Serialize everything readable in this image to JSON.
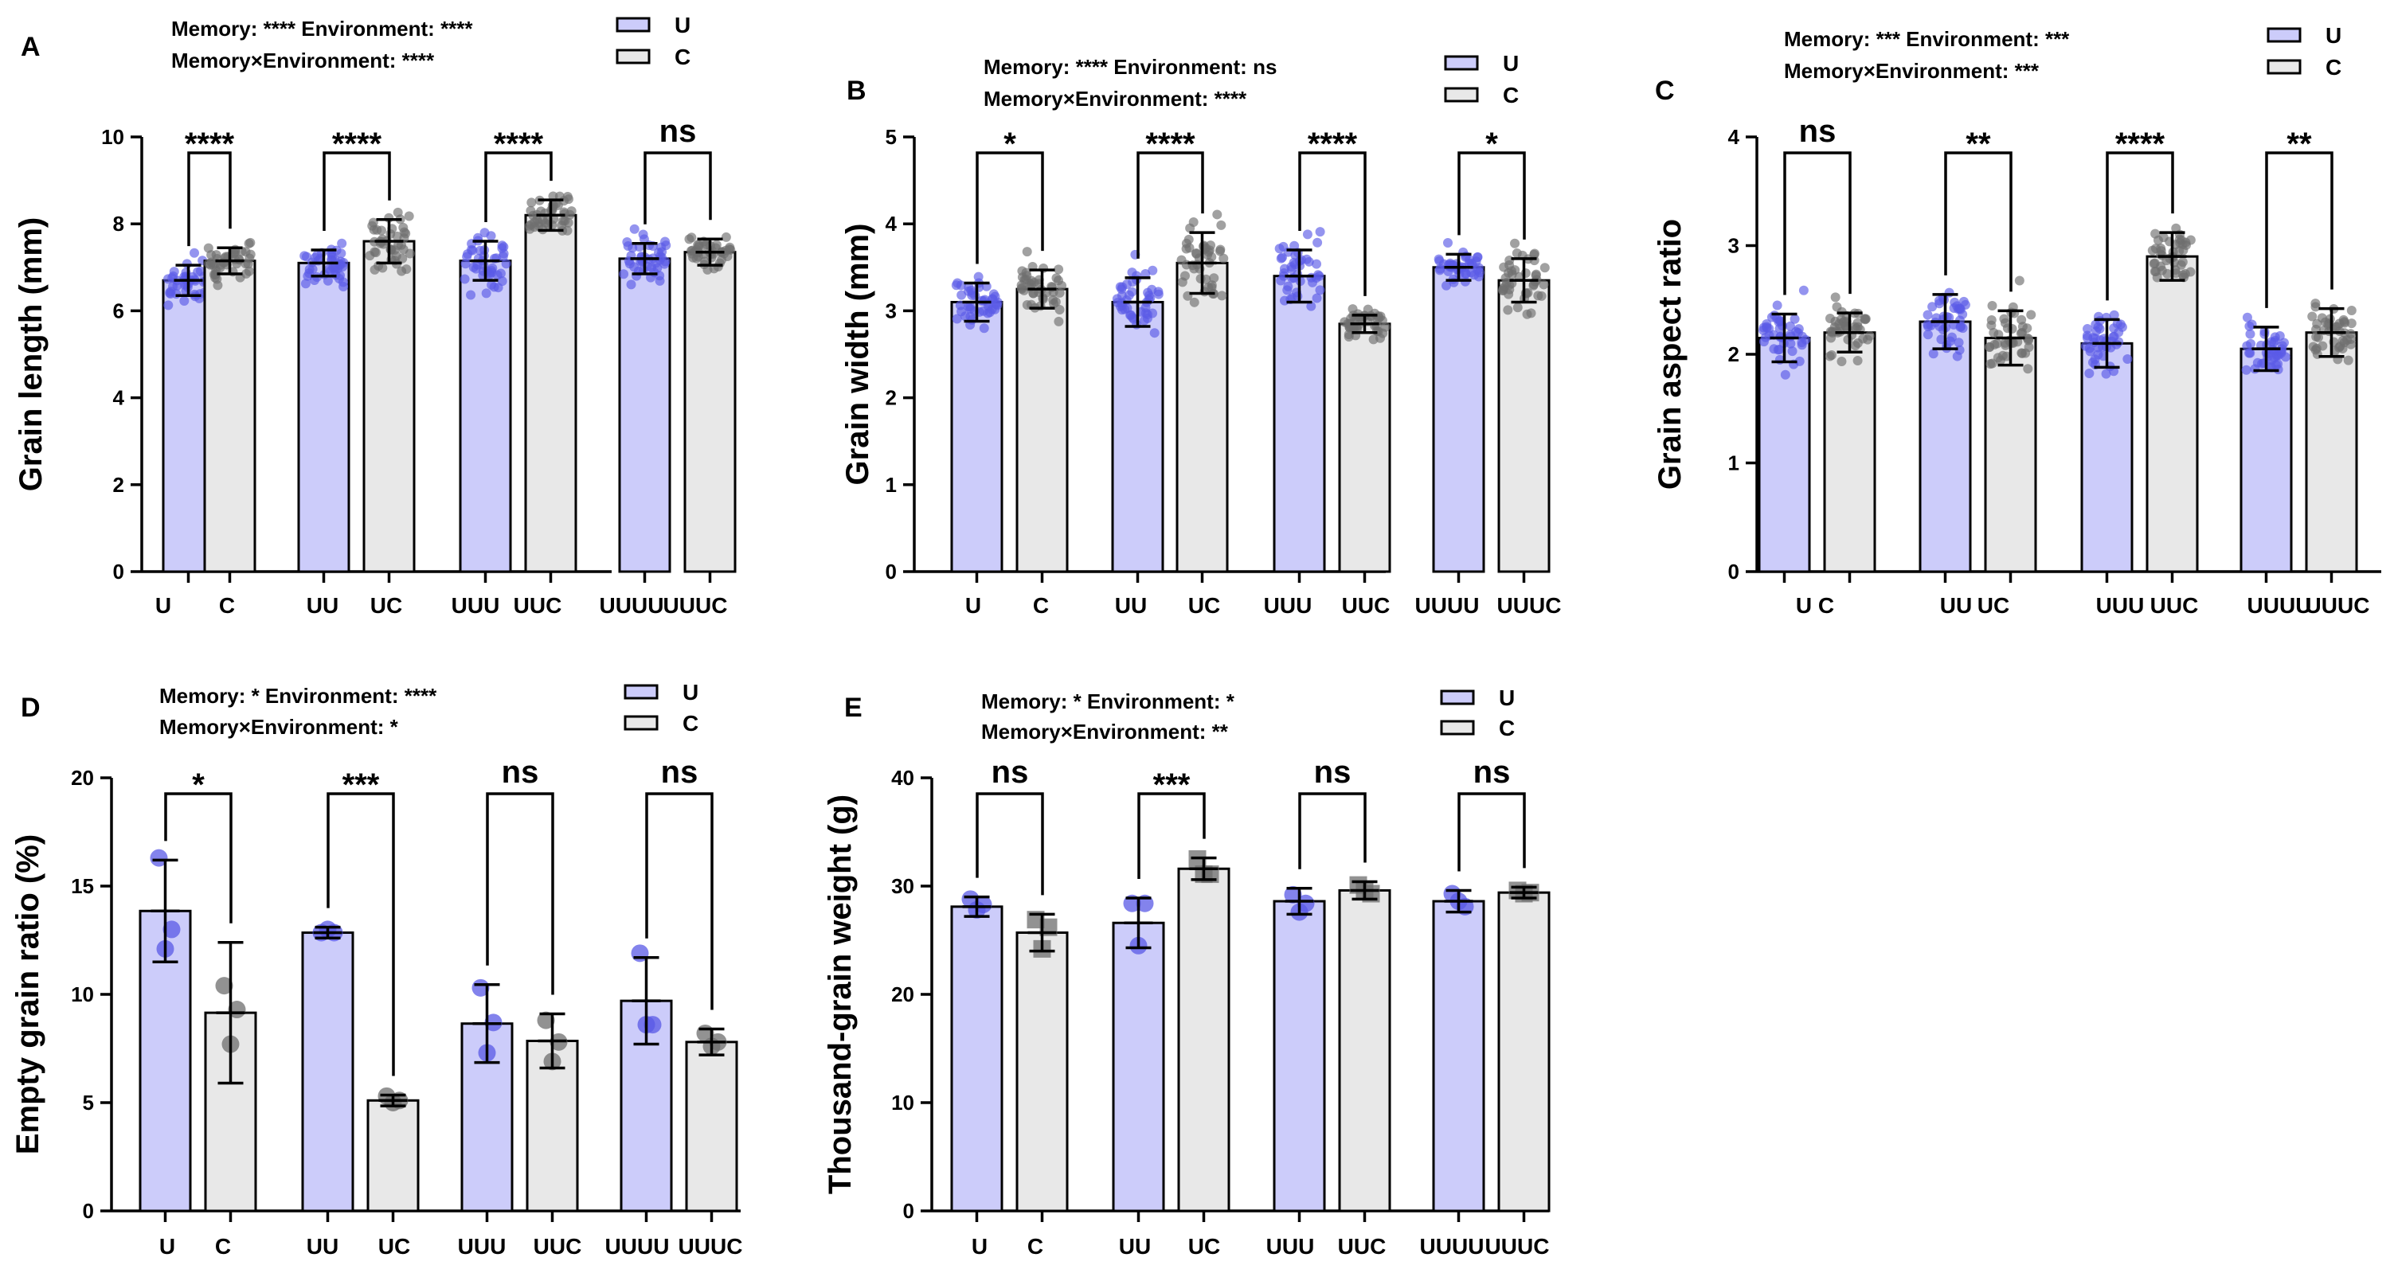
{
  "colors": {
    "U_bar": "#ccccfa",
    "C_bar": "#e8e8e8",
    "U_dot": "#5a5ae6",
    "C_dot": "#6e6e6e"
  },
  "chart_data": [
    {
      "panel": "A",
      "type": "bar",
      "stats": [
        "Memory: **** Environment: ****",
        "Memory×Environment: ****"
      ],
      "legend": [
        "U",
        "C"
      ],
      "ylabel": "Grain length (mm)",
      "ylim": [
        0,
        10
      ],
      "yticks": [
        "0",
        "2",
        "4",
        "6",
        "8",
        "10"
      ],
      "marker": "dots",
      "bars": [
        {
          "label": "U",
          "series": "U",
          "value": 6.7,
          "sd": 0.35
        },
        {
          "label": "C",
          "series": "C",
          "value": 7.15,
          "sd": 0.3
        },
        {
          "label": "UU",
          "series": "U",
          "value": 7.1,
          "sd": 0.3
        },
        {
          "label": "UC",
          "series": "C",
          "value": 7.6,
          "sd": 0.5
        },
        {
          "label": "UUU",
          "series": "U",
          "value": 7.15,
          "sd": 0.45
        },
        {
          "label": "UUC",
          "series": "C",
          "value": 8.2,
          "sd": 0.35
        },
        {
          "label": "UUUU",
          "series": "U",
          "value": 7.2,
          "sd": 0.35
        },
        {
          "label": "UUUC",
          "series": "C",
          "value": 7.35,
          "sd": 0.3
        }
      ],
      "significance": [
        "****",
        "****",
        "****",
        "ns"
      ]
    },
    {
      "panel": "B",
      "type": "bar",
      "stats": [
        "Memory: **** Environment: ns",
        "Memory×Environment: ****"
      ],
      "legend": [
        "U",
        "C"
      ],
      "ylabel": "Grain width (mm)",
      "ylim": [
        0,
        5
      ],
      "yticks": [
        "0",
        "1",
        "2",
        "3",
        "4",
        "5"
      ],
      "marker": "dots",
      "bars": [
        {
          "label": "U",
          "series": "U",
          "value": 3.1,
          "sd": 0.22
        },
        {
          "label": "C",
          "series": "C",
          "value": 3.25,
          "sd": 0.22
        },
        {
          "label": "UU",
          "series": "U",
          "value": 3.1,
          "sd": 0.28
        },
        {
          "label": "UC",
          "series": "C",
          "value": 3.55,
          "sd": 0.35
        },
        {
          "label": "UUU",
          "series": "U",
          "value": 3.4,
          "sd": 0.3
        },
        {
          "label": "UUC",
          "series": "C",
          "value": 2.85,
          "sd": 0.1
        },
        {
          "label": "UUUU",
          "series": "U",
          "value": 3.5,
          "sd": 0.15
        },
        {
          "label": "UUUC",
          "series": "C",
          "value": 3.35,
          "sd": 0.25
        }
      ],
      "significance": [
        "*",
        "****",
        "****",
        "*"
      ]
    },
    {
      "panel": "C",
      "type": "bar",
      "stats": [
        "Memory: *** Environment: ***",
        "Memory×Environment: ***"
      ],
      "legend": [
        "U",
        "C"
      ],
      "ylabel": "Grain aspect ratio",
      "ylim": [
        0,
        4
      ],
      "yticks": [
        "0",
        "1",
        "2",
        "3",
        "4"
      ],
      "marker": "dots",
      "bars": [
        {
          "label": "U",
          "series": "U",
          "value": 2.15,
          "sd": 0.22
        },
        {
          "label": "C",
          "series": "C",
          "value": 2.2,
          "sd": 0.18
        },
        {
          "label": "UU",
          "series": "U",
          "value": 2.3,
          "sd": 0.25
        },
        {
          "label": "UC",
          "series": "C",
          "value": 2.15,
          "sd": 0.25
        },
        {
          "label": "UUU",
          "series": "U",
          "value": 2.1,
          "sd": 0.22
        },
        {
          "label": "UUC",
          "series": "C",
          "value": 2.9,
          "sd": 0.22
        },
        {
          "label": "UUUU",
          "series": "U",
          "value": 2.05,
          "sd": 0.2
        },
        {
          "label": "UUUC",
          "series": "C",
          "value": 2.2,
          "sd": 0.22
        }
      ],
      "significance": [
        "ns",
        "**",
        "****",
        "**"
      ]
    },
    {
      "panel": "D",
      "type": "bar",
      "stats": [
        "Memory: * Environment: ****",
        "Memory×Environment: *"
      ],
      "legend": [
        "U",
        "C"
      ],
      "ylabel": "Empty grain ratio (%)",
      "ylim": [
        0,
        20
      ],
      "yticks": [
        "0",
        "5",
        "10",
        "15",
        "20"
      ],
      "marker": "replicates-circle",
      "bars": [
        {
          "label": "U",
          "series": "U",
          "value": 13.85,
          "sd": 2.35,
          "points": [
            16.3,
            13.0,
            12.1
          ]
        },
        {
          "label": "C",
          "series": "C",
          "value": 9.15,
          "sd": 3.25,
          "points": [
            10.4,
            9.3,
            7.7
          ]
        },
        {
          "label": "UU",
          "series": "U",
          "value": 12.85,
          "sd": 0.25,
          "points": [
            12.85,
            12.85,
            13.0
          ]
        },
        {
          "label": "UC",
          "series": "C",
          "value": 5.1,
          "sd": 0.25,
          "points": [
            5.3,
            5.1,
            5.0
          ]
        },
        {
          "label": "UUU",
          "series": "U",
          "value": 8.65,
          "sd": 1.8,
          "points": [
            10.3,
            8.7,
            7.3
          ]
        },
        {
          "label": "UUC",
          "series": "C",
          "value": 7.85,
          "sd": 1.25,
          "points": [
            8.8,
            7.8,
            6.9
          ]
        },
        {
          "label": "UUUU",
          "series": "U",
          "value": 9.7,
          "sd": 2.0,
          "points": [
            11.9,
            8.6,
            8.6
          ]
        },
        {
          "label": "UUUC",
          "series": "C",
          "value": 7.8,
          "sd": 0.6,
          "points": [
            8.2,
            7.8,
            7.6
          ]
        }
      ],
      "significance": [
        "*",
        "***",
        "ns",
        "ns"
      ]
    },
    {
      "panel": "E",
      "type": "bar",
      "stats": [
        "Memory: * Environment: *",
        "Memory×Environment: **"
      ],
      "legend": [
        "U",
        "C"
      ],
      "ylabel": "Thousand-grain weight (g)",
      "ylim": [
        0,
        40
      ],
      "yticks": [
        "0",
        "10",
        "20",
        "30",
        "40"
      ],
      "marker": "replicates-mixed",
      "bars": [
        {
          "label": "U",
          "series": "U",
          "value": 28.1,
          "sd": 0.9,
          "points": [
            28.8,
            28.3,
            27.8
          ]
        },
        {
          "label": "C",
          "series": "C",
          "value": 25.7,
          "sd": 1.7,
          "points": [
            26.9,
            26.2,
            24.2
          ]
        },
        {
          "label": "UU",
          "series": "U",
          "value": 26.6,
          "sd": 2.3,
          "points": [
            28.4,
            28.4,
            24.5
          ]
        },
        {
          "label": "UC",
          "series": "C",
          "value": 31.6,
          "sd": 1.0,
          "points": [
            32.5,
            31.1,
            31.1
          ]
        },
        {
          "label": "UUU",
          "series": "U",
          "value": 28.6,
          "sd": 1.2,
          "points": [
            29.2,
            28.4,
            27.6
          ]
        },
        {
          "label": "UUC",
          "series": "C",
          "value": 29.6,
          "sd": 0.8,
          "points": [
            30.1,
            29.3,
            29.6
          ]
        },
        {
          "label": "UUUU",
          "series": "U",
          "value": 28.6,
          "sd": 1.0,
          "points": [
            29.3,
            28.1,
            28.6
          ]
        },
        {
          "label": "UUUC",
          "series": "C",
          "value": 29.4,
          "sd": 0.5,
          "points": [
            29.6,
            29.4,
            29.3
          ]
        }
      ],
      "significance": [
        "ns",
        "***",
        "ns",
        "ns"
      ]
    }
  ]
}
